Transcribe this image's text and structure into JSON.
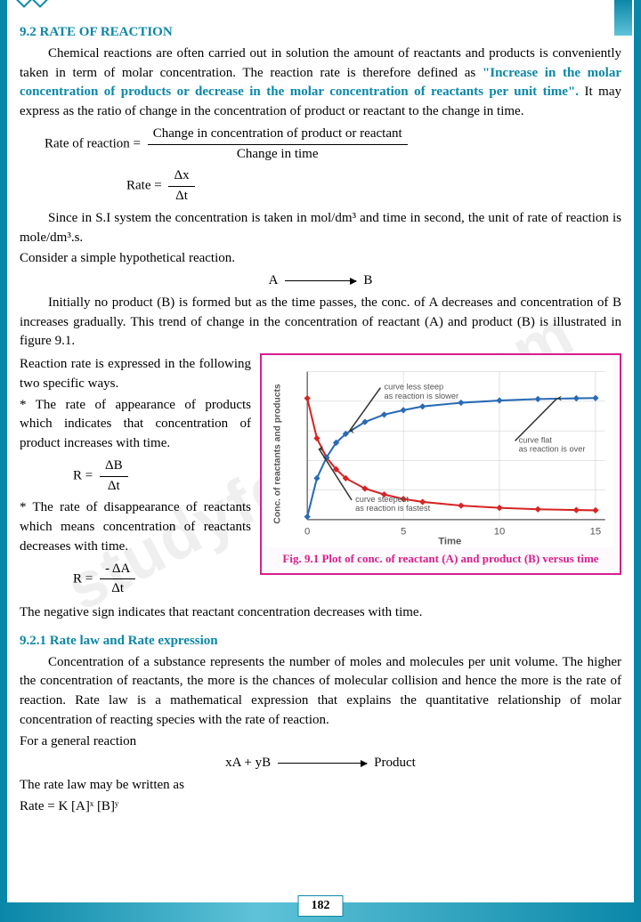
{
  "section": {
    "num": "9.2",
    "title": "RATE OF REACTION"
  },
  "p1a": "Chemical reactions are often carried out in solution the amount of reactants and products is conveniently taken in term of molar concentration. The reaction rate is therefore defined as ",
  "p1def": "\"Increase in the molar concentration of products or decrease in the molar concentration of reactants per unit time\".",
  "p1b": " It may express as the ratio of change in the concentration of product or reactant to the change in time.",
  "eq1": {
    "lhs": "Rate of reaction =",
    "num": "Change in concentration of product or reactant",
    "den": "Change in time"
  },
  "eq2": {
    "lhs": "Rate =",
    "num": "Δx",
    "den": "Δt"
  },
  "p2": "Since in S.I system the concentration is taken in mol/dm³ and time in second, the unit of rate of reaction is mole/dm³.s.",
  "p3": "Consider a simple hypothetical reaction.",
  "rx1": {
    "l": "A",
    "r": "B"
  },
  "p4": "Initially no product (B) is formed but as the time passes, the conc. of A decreases and concentration of B increases gradually. This trend of change in the concentration of reactant (A) and product (B) is illustrated in figure 9.1.",
  "p5": "Reaction rate is expressed in the following two specific ways.",
  "p6": "* The rate of appearance of products which indicates that concentration of product increases with time.",
  "eq3": {
    "lhs": "R =",
    "num": "ΔB",
    "den": "Δt"
  },
  "p7": "* The rate of disappearance of reactants which means concentration of reactants decreases with time.",
  "eq4": {
    "lhs": "R =",
    "num": "- ΔA",
    "den": "Δt"
  },
  "p8": "The negative sign indicates that reactant concentration decreases with time.",
  "sub": {
    "num": "9.2.1",
    "title": "Rate law and Rate expression"
  },
  "p9": "Concentration of a substance represents the number of moles and molecules per unit volume. The higher the concentration of reactants, the more is the chances of molecular collision and hence the more is the rate of reaction. Rate law is a mathematical expression that explains the quantitative relationship of molar concentration of reacting species with the rate of reaction.",
  "p10": "For a general reaction",
  "rx2": {
    "l": "xA  +  yB",
    "r": "Product"
  },
  "p11": "The rate law may be written as",
  "p12": "Rate = K [A]ˣ [B]ʸ",
  "fig": {
    "caption": "Fig. 9.1 Plot of conc. of reactant (A) and product (B) versus time",
    "xlabel": "Time",
    "ylabel": "Conc. of reactants and products",
    "xticks": [
      "0",
      "5",
      "10",
      "15"
    ],
    "labels": {
      "a": "curve less steep as reaction is slower",
      "b": "curve flat as reaction is over",
      "c": "curve steepest as reaction is fastest"
    },
    "red": {
      "color": "#d62424",
      "pts": [
        [
          0,
          0.82
        ],
        [
          0.5,
          0.55
        ],
        [
          1,
          0.42
        ],
        [
          1.5,
          0.34
        ],
        [
          2,
          0.28
        ],
        [
          3,
          0.21
        ],
        [
          4,
          0.17
        ],
        [
          5,
          0.14
        ],
        [
          6,
          0.12
        ],
        [
          8,
          0.095
        ],
        [
          10,
          0.08
        ],
        [
          12,
          0.07
        ],
        [
          14,
          0.065
        ],
        [
          15,
          0.063
        ]
      ]
    },
    "blue": {
      "color": "#2a6bb3",
      "pts": [
        [
          0,
          0.02
        ],
        [
          0.5,
          0.28
        ],
        [
          1,
          0.42
        ],
        [
          1.5,
          0.52
        ],
        [
          2,
          0.58
        ],
        [
          3,
          0.66
        ],
        [
          4,
          0.71
        ],
        [
          5,
          0.74
        ],
        [
          6,
          0.765
        ],
        [
          8,
          0.79
        ],
        [
          10,
          0.805
        ],
        [
          12,
          0.815
        ],
        [
          14,
          0.82
        ],
        [
          15,
          0.822
        ]
      ]
    },
    "xlim": [
      0,
      15.5
    ],
    "ylim": [
      0,
      1
    ],
    "grid": "#c8c8c8",
    "bg": "#ffffff"
  },
  "pageNum": "182",
  "watermark": "studyfor.one.com"
}
